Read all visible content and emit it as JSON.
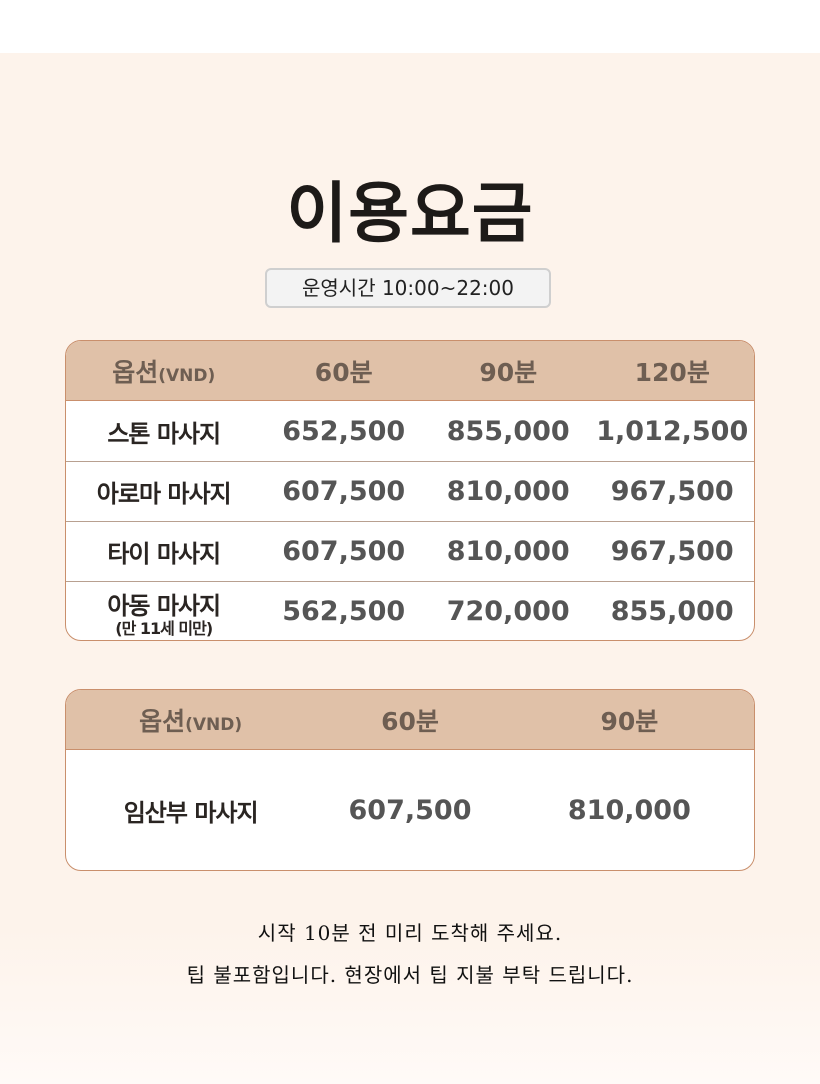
{
  "title": "이용요금",
  "hours": "운영시간 10:00~22:00",
  "table1": {
    "header": {
      "option": "옵션",
      "unit": "(VND)",
      "cols": [
        "60분",
        "90분",
        "120분"
      ]
    },
    "rows": [
      {
        "name": "스톤 마사지",
        "prices": [
          "652,500",
          "855,000",
          "1,012,500"
        ]
      },
      {
        "name": "아로마 마사지",
        "prices": [
          "607,500",
          "810,000",
          "967,500"
        ]
      },
      {
        "name": "타이 마사지",
        "prices": [
          "607,500",
          "810,000",
          "967,500"
        ]
      },
      {
        "name": "아동 마사지",
        "note": "(만 11세 미만)",
        "prices": [
          "562,500",
          "720,000",
          "855,000"
        ]
      }
    ]
  },
  "table2": {
    "header": {
      "option": "옵션",
      "unit": "(VND)",
      "cols": [
        "60분",
        "90분"
      ]
    },
    "rows": [
      {
        "name": "임산부 마사지",
        "prices": [
          "607,500",
          "810,000"
        ]
      }
    ]
  },
  "notes": [
    "시작 10분 전 미리 도착해 주세요.",
    "팁 불포함입니다. 현장에서 팁 지불 부탁 드립니다."
  ],
  "colors": {
    "background": "#fdf3eb",
    "header": "#e0c1a8",
    "border": "#c98f6c"
  }
}
